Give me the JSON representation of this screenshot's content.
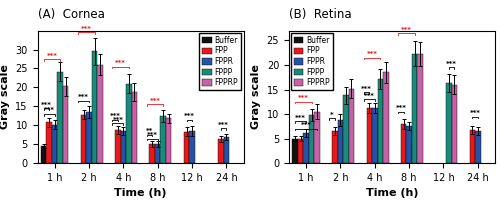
{
  "chart_data": [
    {
      "type": "bar",
      "title": "(A)  Cornea",
      "x_label": "Time (h)",
      "y_label": "Gray scale",
      "categories": [
        "1 h",
        "2 h",
        "4 h",
        "8 h",
        "12 h",
        "24 h"
      ],
      "series": [
        {
          "name": "Buffer",
          "color": "#111111",
          "values": [
            4.5,
            null,
            null,
            null,
            null,
            null
          ],
          "errors": [
            0.5,
            null,
            null,
            null,
            null,
            null
          ]
        },
        {
          "name": "FPP",
          "color": "#e8191a",
          "values": [
            10.8,
            12.8,
            8.8,
            5.0,
            8.3,
            6.3
          ],
          "errors": [
            1.2,
            1.2,
            1.0,
            0.8,
            1.2,
            0.8
          ]
        },
        {
          "name": "FPPR",
          "color": "#2753a4",
          "values": [
            10.2,
            13.5,
            8.5,
            5.0,
            8.5,
            6.8
          ],
          "errors": [
            1.2,
            1.5,
            1.0,
            0.8,
            1.2,
            0.8
          ]
        },
        {
          "name": "FPPP",
          "color": "#1a8a7a",
          "values": [
            24.2,
            29.5,
            21.0,
            12.5,
            null,
            null
          ],
          "errors": [
            2.5,
            3.5,
            2.5,
            1.5,
            null,
            null
          ]
        },
        {
          "name": "FPPRP",
          "color": "#c762a6",
          "values": [
            20.3,
            26.0,
            18.8,
            11.8,
            null,
            null
          ],
          "errors": [
            2.5,
            2.8,
            2.5,
            1.2,
            null,
            null
          ]
        }
      ],
      "ylim": [
        0,
        35
      ],
      "yticks": [
        0,
        5,
        10,
        15,
        20,
        25,
        30
      ],
      "legend": "upper right",
      "annotations": [
        {
          "category": "1 h",
          "from": "Buffer",
          "to": "FPPP",
          "y": 27.5,
          "label": "***",
          "color": "#e8191a"
        },
        {
          "category": "1 h",
          "from": "Buffer",
          "to": "FPP",
          "y": 14.5,
          "label": "***",
          "color": "black"
        },
        {
          "category": "1 h",
          "from": "Buffer",
          "to": "FPPR",
          "y": 13.0,
          "label": "***",
          "color": "black"
        },
        {
          "category": "2 h",
          "from": "Buffer",
          "to": "FPPP",
          "y": 34.5,
          "label": "***",
          "color": "#e8191a"
        },
        {
          "category": "2 h",
          "from": "Buffer",
          "to": "FPPR",
          "y": 16.5,
          "label": "***",
          "color": "black"
        },
        {
          "category": "4 h",
          "from": "Buffer",
          "to": "FPPP",
          "y": 25.5,
          "label": "***",
          "color": "#e8191a"
        },
        {
          "category": "4 h",
          "from": "Buffer",
          "to": "FPP",
          "y": 11.5,
          "label": "***",
          "color": "black"
        },
        {
          "category": "4 h",
          "from": "Buffer",
          "to": "FPPR",
          "y": 10.5,
          "label": "***",
          "color": "black"
        },
        {
          "category": "8 h",
          "from": "Buffer",
          "to": "FPPP",
          "y": 15.5,
          "label": "***",
          "color": "#e8191a"
        },
        {
          "category": "8 h",
          "from": "Buffer",
          "to": "FPP",
          "y": 7.5,
          "label": "**",
          "color": "black"
        },
        {
          "category": "8 h",
          "from": "Buffer",
          "to": "FPPR",
          "y": 6.5,
          "label": "***",
          "color": "black"
        },
        {
          "category": "12 h",
          "from": "FPP",
          "to": "FPPR",
          "y": 11.5,
          "label": "***",
          "color": "black"
        },
        {
          "category": "24 h",
          "from": "FPP",
          "to": "FPPR",
          "y": 9.2,
          "label": "***",
          "color": "black"
        }
      ]
    },
    {
      "type": "bar",
      "title": "(B)  Retina",
      "x_label": "Time (h)",
      "y_label": "Gray scale",
      "categories": [
        "1 h",
        "2 h",
        "4 h",
        "8 h",
        "12 h",
        "24 h"
      ],
      "series": [
        {
          "name": "Buffer",
          "color": "#111111",
          "values": [
            5.0,
            null,
            null,
            null,
            null,
            null
          ],
          "errors": [
            0.5,
            null,
            null,
            null,
            null,
            null
          ]
        },
        {
          "name": "FPP",
          "color": "#e8191a",
          "values": [
            5.0,
            6.5,
            11.2,
            8.0,
            null,
            6.7
          ],
          "errors": [
            0.5,
            0.8,
            1.0,
            1.0,
            null,
            0.8
          ]
        },
        {
          "name": "FPPR",
          "color": "#2753a4",
          "values": [
            6.2,
            8.8,
            11.3,
            7.5,
            null,
            6.5
          ],
          "errors": [
            0.8,
            1.2,
            1.0,
            0.8,
            null,
            0.8
          ]
        },
        {
          "name": "FPPP",
          "color": "#1a8a7a",
          "values": [
            9.8,
            13.8,
            17.2,
            22.3,
            16.3,
            null
          ],
          "errors": [
            1.2,
            1.8,
            2.0,
            2.5,
            1.8,
            null
          ]
        },
        {
          "name": "FPPRP",
          "color": "#c762a6",
          "values": [
            10.5,
            15.2,
            18.5,
            22.2,
            16.0,
            null
          ],
          "errors": [
            1.5,
            2.0,
            2.2,
            2.5,
            2.0,
            null
          ]
        }
      ],
      "ylim": [
        0,
        27
      ],
      "yticks": [
        0,
        5,
        10,
        15,
        20,
        25
      ],
      "legend": "upper left",
      "annotations": [
        {
          "category": "1 h",
          "from": "Buffer",
          "to": "FPPP",
          "y": 12.5,
          "label": "***",
          "color": "#e8191a"
        },
        {
          "category": "1 h",
          "from": "Buffer",
          "to": "FPPR",
          "y": 8.5,
          "label": "***",
          "color": "black"
        },
        {
          "category": "1 h",
          "from": "Buffer",
          "to": "FPPRP",
          "y": 7.0,
          "label": "***",
          "color": "black"
        },
        {
          "category": "2 h",
          "from": "Buffer",
          "to": "FPP",
          "y": 9.2,
          "label": "*",
          "color": "black"
        },
        {
          "category": "4 h",
          "from": "Buffer",
          "to": "FPPP",
          "y": 21.5,
          "label": "***",
          "color": "#e8191a"
        },
        {
          "category": "4 h",
          "from": "Buffer",
          "to": "FPP",
          "y": 14.5,
          "label": "***",
          "color": "black"
        },
        {
          "category": "4 h",
          "from": "Buffer",
          "to": "FPPR",
          "y": 13.0,
          "label": "***",
          "color": "black"
        },
        {
          "category": "8 h",
          "from": "Buffer",
          "to": "FPPP",
          "y": 26.5,
          "label": "***",
          "color": "#e8191a"
        },
        {
          "category": "8 h",
          "from": "Buffer",
          "to": "FPP",
          "y": 10.5,
          "label": "***",
          "color": "black"
        },
        {
          "category": "12 h",
          "from": "FPPP",
          "to": "FPPRP",
          "y": 19.5,
          "label": "***",
          "color": "black"
        },
        {
          "category": "24 h",
          "from": "FPP",
          "to": "FPPR",
          "y": 9.5,
          "label": "***",
          "color": "black"
        }
      ]
    }
  ]
}
